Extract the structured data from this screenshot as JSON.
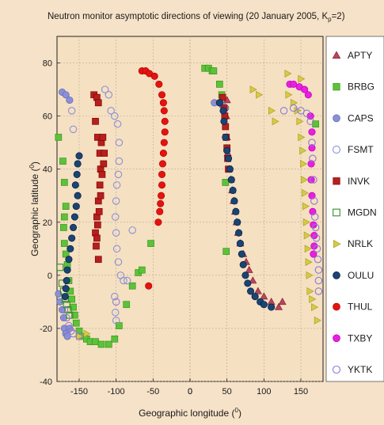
{
  "chart_data": {
    "type": "scatter",
    "title": "Neutron monitor asymptotic directions of viewing (20 January 2005, K",
    "title_sub": "p",
    "title_tail": "=2)",
    "xlabel": "Geographic longitude (",
    "xlabel_sup": "0",
    "xlabel_tail": ")",
    "ylabel": "Geographic latitude (",
    "ylabel_sup": "0",
    "ylabel_tail": ")",
    "xlim": [
      -180,
      180
    ],
    "ylim": [
      -40,
      90
    ],
    "xticks": [
      -150,
      -100,
      -50,
      0,
      50,
      100,
      150
    ],
    "yticks": [
      -40,
      -20,
      0,
      20,
      40,
      60,
      80
    ],
    "grid": true,
    "legend_position": "right",
    "series": [
      {
        "name": "APTY",
        "marker": "triangle-up",
        "color": "#b5485a",
        "fill": true,
        "points": [
          [
            50,
            66
          ],
          [
            49,
            60
          ],
          [
            50,
            52
          ],
          [
            51,
            46
          ],
          [
            53,
            40
          ],
          [
            55,
            36
          ],
          [
            57,
            32
          ],
          [
            59,
            28
          ],
          [
            61,
            24
          ],
          [
            63,
            20
          ],
          [
            65,
            16
          ],
          [
            68,
            12
          ],
          [
            72,
            8
          ],
          [
            76,
            5
          ],
          [
            80,
            2
          ],
          [
            85,
            -2
          ],
          [
            92,
            -6
          ],
          [
            100,
            -8
          ],
          [
            110,
            -10
          ],
          [
            120,
            -12
          ],
          [
            125,
            -10
          ]
        ]
      },
      {
        "name": "BRBG",
        "marker": "square",
        "color": "#5ec13c",
        "fill": true,
        "points": [
          [
            -178,
            52
          ],
          [
            -172,
            43
          ],
          [
            -170,
            35
          ],
          [
            -168,
            26
          ],
          [
            -170,
            22
          ],
          [
            -171,
            18
          ],
          [
            -170,
            12
          ],
          [
            -168,
            8
          ],
          [
            -166,
            4
          ],
          [
            -164,
            -2
          ],
          [
            -162,
            -6
          ],
          [
            -160,
            -9
          ],
          [
            -158,
            -12
          ],
          [
            -156,
            -15
          ],
          [
            -154,
            -18
          ],
          [
            -150,
            -21
          ],
          [
            -145,
            -23
          ],
          [
            -140,
            -24
          ],
          [
            -135,
            -25
          ],
          [
            -128,
            -25
          ],
          [
            -120,
            -26
          ],
          [
            -110,
            -26
          ],
          [
            -102,
            -24
          ],
          [
            -96,
            -19
          ],
          [
            -86,
            -11
          ],
          [
            -78,
            -4
          ],
          [
            -70,
            1
          ],
          [
            -65,
            2
          ],
          [
            -53,
            12
          ],
          [
            20,
            78
          ],
          [
            25,
            78
          ],
          [
            30,
            77
          ],
          [
            32,
            77
          ],
          [
            40,
            72
          ],
          [
            43,
            68
          ],
          [
            48,
            35
          ],
          [
            49,
            9
          ],
          [
            170,
            57
          ]
        ]
      },
      {
        "name": "CAPS",
        "marker": "circle",
        "color": "#8a90d6",
        "fill": true,
        "points": [
          [
            -178,
            -7
          ],
          [
            -176,
            -10
          ],
          [
            -173,
            -13
          ],
          [
            -171,
            -16
          ],
          [
            -170,
            -20
          ],
          [
            -168,
            -22
          ],
          [
            -166,
            -23
          ],
          [
            -163,
            -20
          ],
          [
            -173,
            69
          ],
          [
            -168,
            68
          ],
          [
            -163,
            66
          ],
          [
            33,
            65
          ],
          [
            40,
            65
          ],
          [
            44,
            64
          ],
          [
            48,
            63
          ]
        ]
      },
      {
        "name": "FSMT",
        "marker": "circle",
        "color": "#8a90d6",
        "fill": false,
        "points": [
          [
            -160,
            62
          ],
          [
            -158,
            55
          ],
          [
            -115,
            70
          ],
          [
            -110,
            68
          ],
          [
            -107,
            62
          ],
          [
            -102,
            60
          ],
          [
            -98,
            57
          ],
          [
            -96,
            50
          ],
          [
            -96,
            43
          ],
          [
            -97,
            38
          ],
          [
            -99,
            34
          ],
          [
            -100,
            28
          ],
          [
            -101,
            22
          ],
          [
            -100,
            16
          ],
          [
            -99,
            10
          ],
          [
            -97,
            5
          ],
          [
            -94,
            0
          ],
          [
            -90,
            -2
          ],
          [
            -85,
            -2
          ],
          [
            -78,
            17
          ],
          [
            -102,
            -8
          ],
          [
            -101,
            -14
          ],
          [
            -100,
            -17
          ]
        ]
      },
      {
        "name": "INVK",
        "marker": "square",
        "color": "#b3201e",
        "fill": true,
        "points": [
          [
            -130,
            68
          ],
          [
            -126,
            67
          ],
          [
            -124,
            65
          ],
          [
            -128,
            58
          ],
          [
            -125,
            52
          ],
          [
            -122,
            46
          ],
          [
            -121,
            40
          ],
          [
            -122,
            34
          ],
          [
            -124,
            28
          ],
          [
            -126,
            22
          ],
          [
            -128,
            16
          ],
          [
            -127,
            11
          ],
          [
            -124,
            6
          ],
          [
            -120,
            50
          ],
          [
            -118,
            52
          ],
          [
            -116,
            46
          ],
          [
            -117,
            42
          ],
          [
            -119,
            38
          ],
          [
            -121,
            30
          ],
          [
            -123,
            24
          ],
          [
            -125,
            19
          ],
          [
            -126,
            14
          ],
          [
            44,
            67
          ],
          [
            46,
            63
          ],
          [
            47,
            60
          ],
          [
            48,
            56
          ],
          [
            49,
            52
          ],
          [
            50,
            48
          ],
          [
            51,
            44
          ],
          [
            52,
            40
          ]
        ]
      },
      {
        "name": "MGDN",
        "marker": "square",
        "color": "#2f8f2a",
        "fill": false,
        "points": [
          [
            -176,
            3
          ],
          [
            -173,
            -3
          ],
          [
            -171,
            -6
          ],
          [
            -169,
            -9
          ],
          [
            -167,
            -11
          ],
          [
            -165,
            -13
          ],
          [
            -163,
            -15
          ]
        ]
      },
      {
        "name": "NRLK",
        "marker": "triangle-right",
        "color": "#d6c949",
        "fill": true,
        "points": [
          [
            -150,
            -23
          ],
          [
            -140,
            -22
          ],
          [
            85,
            70
          ],
          [
            93,
            68
          ],
          [
            110,
            62
          ],
          [
            115,
            58
          ],
          [
            132,
            76
          ],
          [
            150,
            74
          ],
          [
            133,
            68
          ],
          [
            140,
            65
          ],
          [
            145,
            62
          ],
          [
            148,
            58
          ],
          [
            150,
            52
          ],
          [
            152,
            47
          ],
          [
            153,
            42
          ],
          [
            154,
            36
          ],
          [
            155,
            31
          ],
          [
            156,
            26
          ],
          [
            157,
            20
          ],
          [
            158,
            15
          ],
          [
            159,
            10
          ],
          [
            160,
            5
          ],
          [
            161,
            0
          ],
          [
            162,
            -6
          ],
          [
            165,
            -9
          ],
          [
            168,
            -12
          ],
          [
            172,
            -17
          ]
        ]
      },
      {
        "name": "OULU",
        "marker": "circle",
        "color": "#1b4570",
        "fill": true,
        "points": [
          [
            -155,
            34
          ],
          [
            -153,
            38
          ],
          [
            -152,
            42
          ],
          [
            -150,
            45
          ],
          [
            -152,
            30
          ],
          [
            -154,
            26
          ],
          [
            -156,
            22
          ],
          [
            -158,
            18
          ],
          [
            -160,
            14
          ],
          [
            -162,
            10
          ],
          [
            -164,
            6
          ],
          [
            -166,
            2
          ],
          [
            -167,
            -2
          ],
          [
            -168,
            -5
          ],
          [
            -169,
            -8
          ],
          [
            40,
            65
          ],
          [
            45,
            62
          ],
          [
            46,
            58
          ],
          [
            48,
            52
          ],
          [
            50,
            47
          ],
          [
            52,
            44
          ],
          [
            54,
            40
          ],
          [
            56,
            36
          ],
          [
            58,
            32
          ],
          [
            60,
            28
          ],
          [
            62,
            24
          ],
          [
            64,
            20
          ],
          [
            66,
            16
          ],
          [
            68,
            12
          ],
          [
            70,
            8
          ],
          [
            72,
            4
          ],
          [
            75,
            0
          ],
          [
            78,
            -3
          ],
          [
            82,
            -6
          ],
          [
            88,
            -8
          ],
          [
            95,
            -10
          ],
          [
            100,
            -11
          ],
          [
            110,
            -12
          ]
        ]
      },
      {
        "name": "THUL",
        "marker": "circle",
        "color": "#e3140f",
        "fill": true,
        "points": [
          [
            -65,
            77
          ],
          [
            -60,
            77
          ],
          [
            -55,
            76
          ],
          [
            -48,
            75
          ],
          [
            -42,
            72
          ],
          [
            -38,
            68
          ],
          [
            -36,
            65
          ],
          [
            -35,
            62
          ],
          [
            -34,
            58
          ],
          [
            -34,
            54
          ],
          [
            -35,
            50
          ],
          [
            -36,
            46
          ],
          [
            -37,
            42
          ],
          [
            -38,
            38
          ],
          [
            -38,
            34
          ],
          [
            -39,
            30
          ],
          [
            -40,
            27
          ],
          [
            -41,
            24
          ],
          [
            -43,
            20
          ],
          [
            -56,
            -4
          ]
        ]
      },
      {
        "name": "TXBY",
        "marker": "circle",
        "color": "#e81fe0",
        "fill": true,
        "points": [
          [
            135,
            72
          ],
          [
            140,
            72
          ],
          [
            148,
            71
          ],
          [
            155,
            70
          ],
          [
            160,
            68
          ],
          [
            163,
            60
          ],
          [
            165,
            54
          ],
          [
            165,
            48
          ],
          [
            164,
            42
          ],
          [
            164,
            36
          ],
          [
            165,
            30
          ],
          [
            166,
            24
          ],
          [
            167,
            19
          ],
          [
            168,
            15
          ],
          [
            168,
            11
          ],
          [
            167,
            8
          ]
        ]
      },
      {
        "name": "YKTK",
        "marker": "circle",
        "color": "#8a7ad6",
        "fill": false,
        "points": [
          [
            -170,
            -13
          ],
          [
            -167,
            -16
          ],
          [
            -164,
            -19
          ],
          [
            -161,
            -21
          ],
          [
            -158,
            -22
          ],
          [
            -150,
            -23
          ],
          [
            -100,
            -10
          ],
          [
            127,
            62
          ],
          [
            140,
            63
          ],
          [
            150,
            62
          ],
          [
            158,
            61
          ],
          [
            163,
            58
          ],
          [
            165,
            50
          ],
          [
            166,
            44
          ],
          [
            167,
            36
          ],
          [
            168,
            28
          ],
          [
            169,
            22
          ],
          [
            170,
            18
          ],
          [
            171,
            14
          ],
          [
            172,
            10
          ],
          [
            173,
            6
          ],
          [
            174,
            2
          ],
          [
            174,
            -2
          ],
          [
            174,
            -6
          ]
        ]
      }
    ]
  }
}
